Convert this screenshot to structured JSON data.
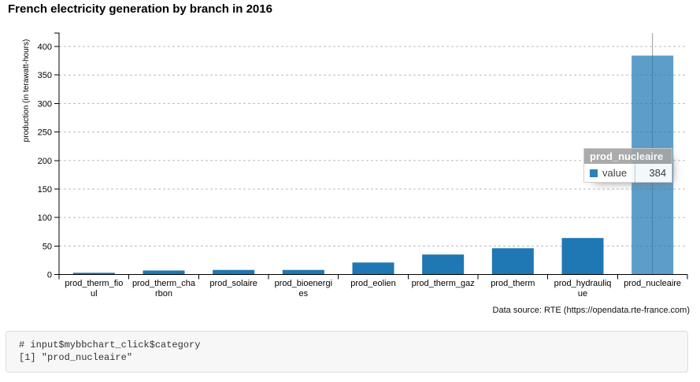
{
  "page": {
    "title": "French electricity generation by branch in 2016",
    "data_source": "Data source: RTE (https://opendata.rte-france.com)"
  },
  "chart_data": {
    "type": "bar",
    "categories": [
      "prod_therm_fioul",
      "prod_therm_charbon",
      "prod_solaire",
      "prod_bioenergies",
      "prod_eolien",
      "prod_therm_gaz",
      "prod_therm",
      "prod_hydraulique",
      "prod_nucleaire"
    ],
    "series": [
      {
        "name": "value",
        "values": [
          3,
          7,
          8,
          8,
          21,
          35,
          46,
          64,
          384
        ]
      }
    ],
    "ylabel": "production (in terawatt-hours)",
    "xlabel": "",
    "y_ticks": [
      0,
      50,
      100,
      150,
      200,
      250,
      300,
      350,
      400
    ],
    "ylim": [
      0,
      420
    ],
    "grid": "horizontal-dashed",
    "legend": "none",
    "bar_color": "#1f77b4",
    "selected_category": "prod_nucleaire",
    "selected_index": 8,
    "selected_value": 384
  },
  "tooltip": {
    "title": "prod_nucleaire",
    "series_label": "value",
    "value": "384",
    "swatch_color": "#1f77b4"
  },
  "console": {
    "lines": [
      "# input$mybbchart_click$category",
      "[1] \"prod_nucleaire\""
    ]
  }
}
